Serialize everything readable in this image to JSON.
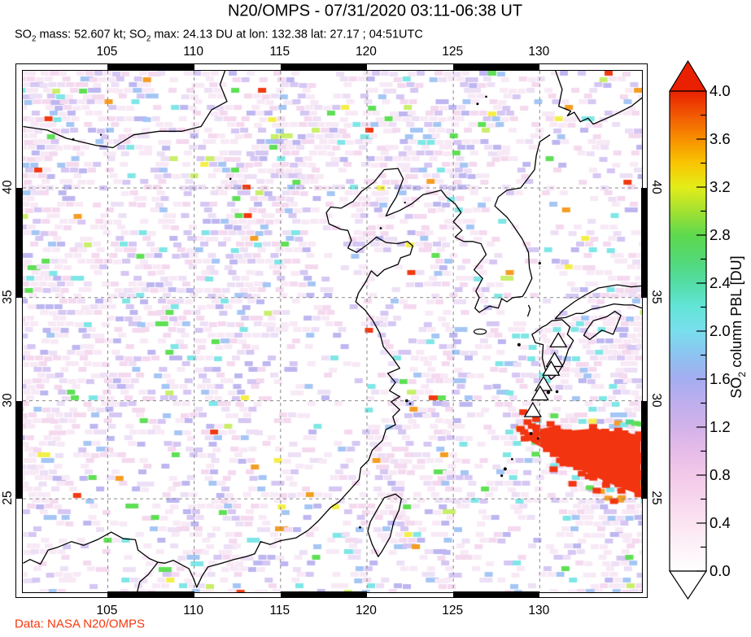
{
  "header": {
    "title": "N20/OMPS - 07/31/2020 03:11-06:38 UT",
    "stats": {
      "s1": "SO",
      "s1sub": "2",
      "s2": " mass: 52.607 kt; SO",
      "s2sub": "2",
      "s3": " max: 24.13 DU at lon: 132.38 lat: 27.17 ; 04:51UTC"
    }
  },
  "footer": {
    "credit": "Data: NASA N20/OMPS",
    "color": "#f5380f"
  },
  "chart_data": {
    "type": "heatmap",
    "title": "N20/OMPS - 07/31/2020 03:11-06:38 UT",
    "so2_mass_kt": 52.607,
    "so2_max_du": 24.13,
    "so2_max_lon": 132.38,
    "so2_max_lat": 27.17,
    "so2_max_time": "04:51UTC",
    "extent": {
      "lon": [
        100.1,
        135.9
      ],
      "lat": [
        20.0,
        45.0
      ]
    },
    "lon_ticks": [
      {
        "label": "105",
        "value": 105
      },
      {
        "label": "110",
        "value": 110
      },
      {
        "label": "115",
        "value": 115
      },
      {
        "label": "120",
        "value": 120
      },
      {
        "label": "125",
        "value": 125
      },
      {
        "label": "130",
        "value": 130
      }
    ],
    "lat_ticks": [
      {
        "label": "40",
        "value": 40
      },
      {
        "label": "35",
        "value": 35
      },
      {
        "label": "30",
        "value": 30
      },
      {
        "label": "25",
        "value": 25
      }
    ],
    "grid": "dashed",
    "colorbar": {
      "title_prefix": "SO",
      "title_sub": "2",
      "title_rest": " column PBL [DU]",
      "range": [
        0.0,
        4.0
      ],
      "major_tick_step": 0.4,
      "minor_tick_step": 0.2,
      "tick_labels": [
        "0.0",
        "0.4",
        "0.8",
        "1.2",
        "1.6",
        "2.0",
        "2.4",
        "2.8",
        "3.2",
        "3.6",
        "4.0"
      ],
      "over_arrow_color": "#e92100",
      "under_arrow_color": "#ffffff",
      "stops": [
        [
          0.0,
          "#ffffff"
        ],
        [
          0.4,
          "#fbe4f1"
        ],
        [
          0.8,
          "#f3c8e9"
        ],
        [
          1.0,
          "#e6bce9"
        ],
        [
          1.2,
          "#d2b2ea"
        ],
        [
          1.4,
          "#bfaeee"
        ],
        [
          1.6,
          "#a4adf1"
        ],
        [
          1.8,
          "#8dc3f0"
        ],
        [
          2.0,
          "#79deed"
        ],
        [
          2.2,
          "#63e5d8"
        ],
        [
          2.4,
          "#53dda6"
        ],
        [
          2.6,
          "#53d874"
        ],
        [
          2.8,
          "#5dd94d"
        ],
        [
          3.0,
          "#a3e131"
        ],
        [
          3.2,
          "#e3ed19"
        ],
        [
          3.4,
          "#f9c501"
        ],
        [
          3.6,
          "#f89000"
        ],
        [
          3.8,
          "#f15803"
        ],
        [
          4.0,
          "#e92100"
        ]
      ]
    },
    "volcano_markers": [
      {
        "lon": 131.08,
        "lat": 32.88
      },
      {
        "lon": 130.86,
        "lat": 31.93
      },
      {
        "lon": 130.66,
        "lat": 31.5
      },
      {
        "lon": 130.22,
        "lat": 30.75
      },
      {
        "lon": 130.02,
        "lat": 30.28
      },
      {
        "lon": 129.6,
        "lat": 29.45
      }
    ],
    "plume": {
      "color": "#f23410",
      "polygon_lonlat": [
        [
          129.2,
          28.15
        ],
        [
          129.9,
          28.55
        ],
        [
          130.7,
          28.7
        ],
        [
          131.7,
          28.5
        ],
        [
          133.0,
          28.6
        ],
        [
          134.5,
          28.4
        ],
        [
          135.85,
          28.3
        ],
        [
          135.85,
          25.2
        ],
        [
          134.9,
          25.5
        ],
        [
          133.8,
          25.9
        ],
        [
          132.6,
          26.4
        ],
        [
          131.4,
          27.0
        ],
        [
          130.3,
          27.55
        ],
        [
          129.5,
          27.95
        ]
      ],
      "fringe_colors": [
        "#5fdf55",
        "#f4ef48",
        "#7fe6e6",
        "#f59d22",
        "#49d98f"
      ],
      "extra_red_cells_lonlat": [
        [
          129.05,
          29.45
        ],
        [
          129.3,
          28.95
        ],
        [
          129.55,
          28.75
        ],
        [
          128.9,
          28.6
        ],
        [
          129.8,
          29.1
        ],
        [
          129.1,
          28.45
        ],
        [
          129.35,
          28.3
        ],
        [
          133.3,
          25.45
        ],
        [
          134.3,
          24.9
        ],
        [
          131.9,
          25.8
        ],
        [
          130.8,
          26.55
        ]
      ]
    },
    "noise": {
      "skip_w": 24,
      "palette": [
        {
          "color": "#f8e9f6",
          "w": 34
        },
        {
          "color": "#f4d9ef",
          "w": 16
        },
        {
          "color": "#ecdff6",
          "w": 10
        },
        {
          "color": "#d5c6f3",
          "w": 9
        },
        {
          "color": "#bdb6f0",
          "w": 5.5
        },
        {
          "color": "#a5c6f4",
          "w": 5
        },
        {
          "color": "#7fe6e6",
          "w": 2.2
        },
        {
          "color": "#5fdf55",
          "w": 1.8
        },
        {
          "color": "#c9ee6a",
          "w": 0.7
        },
        {
          "color": "#f4ef48",
          "w": 0.5
        },
        {
          "color": "#f59d22",
          "w": 0.45
        },
        {
          "color": "#f03a12",
          "w": 0.35
        }
      ]
    }
  }
}
